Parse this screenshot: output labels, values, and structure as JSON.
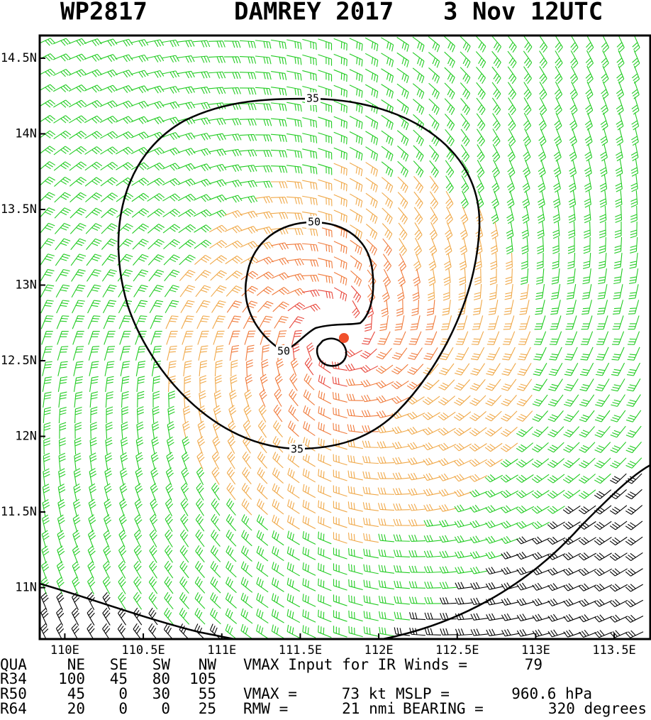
{
  "header": {
    "id": "WP2817",
    "storm": "DAMREY 2017",
    "time": "3 Nov 12UTC"
  },
  "map": {
    "xlim": [
      109.84,
      113.73
    ],
    "ylim": [
      10.66,
      14.65
    ],
    "xticks": [
      {
        "value": 110,
        "label": "110E"
      },
      {
        "value": 110.5,
        "label": "110.5E"
      },
      {
        "value": 111,
        "label": "111E"
      },
      {
        "value": 111.5,
        "label": "111.5E"
      },
      {
        "value": 112,
        "label": "112E"
      },
      {
        "value": 112.5,
        "label": "112.5E"
      },
      {
        "value": 113,
        "label": "113E"
      },
      {
        "value": 113.5,
        "label": "113.5E"
      }
    ],
    "yticks": [
      {
        "value": 11,
        "label": "11N"
      },
      {
        "value": 11.5,
        "label": "11.5N"
      },
      {
        "value": 12,
        "label": "12N"
      },
      {
        "value": 12.5,
        "label": "12.5N"
      },
      {
        "value": 13,
        "label": "13N"
      },
      {
        "value": 13.5,
        "label": "13.5N"
      },
      {
        "value": 14,
        "label": "14N"
      },
      {
        "value": 14.5,
        "label": "14.5N"
      }
    ],
    "contour_labels": [
      "35",
      "35",
      "50",
      "50"
    ]
  },
  "table": {
    "header": [
      "QUA",
      "NE",
      "SE",
      "SW",
      "NW"
    ],
    "rows": [
      [
        "R34",
        "100",
        "45",
        "80",
        "105"
      ],
      [
        "R50",
        "45",
        "0",
        "30",
        "55"
      ],
      [
        "R64",
        "20",
        "0",
        "0",
        "25"
      ]
    ]
  },
  "info": {
    "ir_label": "VMAX Input for IR Winds =",
    "ir_value": "79",
    "vmax_label": "VMAX =",
    "vmax_value": "73 kt",
    "mslp_label": "MSLP =",
    "mslp_value": "960.6 hPa",
    "rmw_label": "RMW =",
    "rmw_value": "21 nmi",
    "bearing_label": "BEARING =",
    "bearing_value": "320 degrees"
  }
}
